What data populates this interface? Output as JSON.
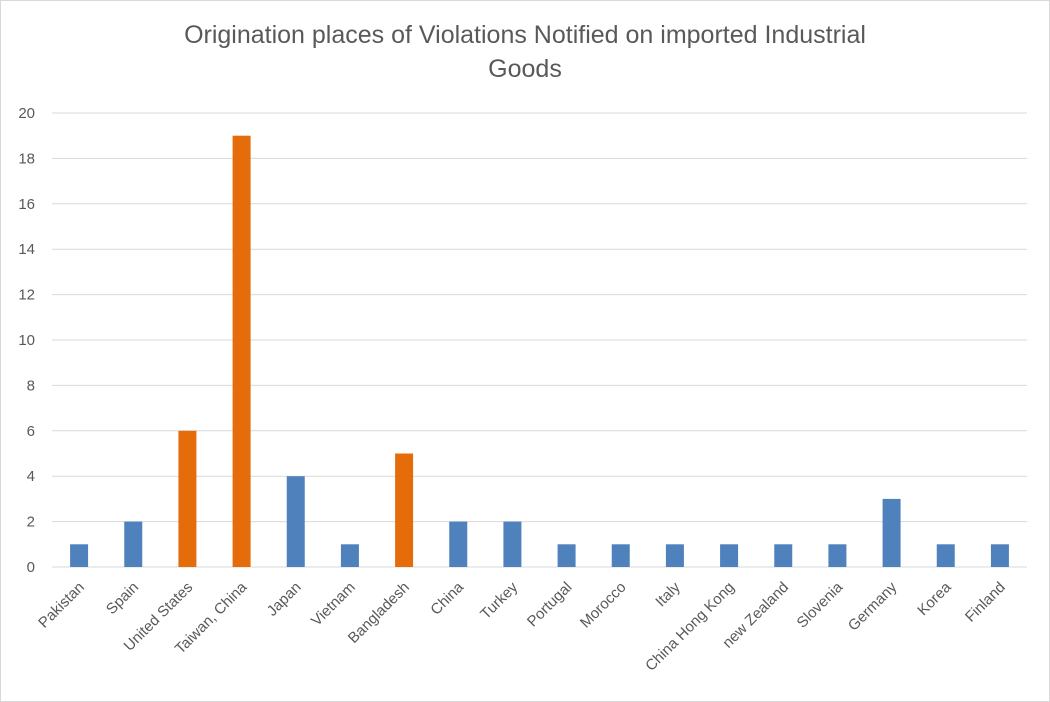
{
  "chart_data": {
    "type": "bar",
    "title": "Origination places of Violations Notified on imported Industrial Goods",
    "categories": [
      "Pakistan",
      "Spain",
      "United States",
      "Taiwan, China",
      "Japan",
      "Vietnam",
      "Bangladesh",
      "China",
      "Turkey",
      "Portugal",
      "Morocco",
      "Italy",
      "China Hong Kong",
      "new Zealand",
      "Slovenia",
      "Germany",
      "Korea",
      "Finland"
    ],
    "values": [
      1,
      2,
      6,
      19,
      4,
      1,
      5,
      2,
      2,
      1,
      1,
      1,
      1,
      1,
      1,
      3,
      1,
      1
    ],
    "highlighted": [
      false,
      false,
      true,
      true,
      false,
      false,
      true,
      false,
      false,
      false,
      false,
      false,
      false,
      false,
      false,
      false,
      false,
      false
    ],
    "ylim": [
      0,
      20
    ],
    "yticks": [
      0,
      2,
      4,
      6,
      8,
      10,
      12,
      14,
      16,
      18,
      20
    ],
    "xlabel": "",
    "ylabel": "",
    "grid": true,
    "legend": "none",
    "colors": {
      "default": "#4f81bd",
      "highlight": "#e46c0a",
      "grid": "#d9d9d9",
      "text": "#595959"
    }
  }
}
